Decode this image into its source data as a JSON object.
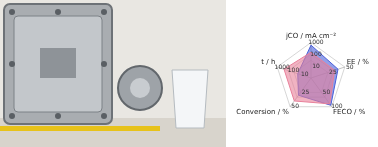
{
  "chart_data": {
    "type": "radar",
    "axes": [
      {
        "label": "jCO / mA cm⁻²",
        "lim": [
          1,
          1000
        ],
        "ticks": [
          10,
          100,
          1000
        ],
        "log": true
      },
      {
        "label": "EE / %",
        "lim": [
          0,
          50
        ],
        "ticks": [
          25,
          50
        ]
      },
      {
        "label": "FECO / %",
        "lim": [
          0,
          100
        ],
        "ticks": [
          50,
          100
        ]
      },
      {
        "label": "Conversion / %",
        "lim": [
          0,
          50
        ],
        "ticks": [
          25,
          50
        ]
      },
      {
        "label": "t / h",
        "lim": [
          1,
          1000
        ],
        "ticks": [
          10,
          100,
          1000
        ],
        "log": true
      }
    ],
    "series": [
      {
        "color": "#e8809a",
        "values": [
          150,
          35,
          90,
          40,
          250
        ]
      },
      {
        "color": "#4a5fd8",
        "values": [
          600,
          40,
          95,
          30,
          15
        ]
      }
    ],
    "grid": true
  }
}
